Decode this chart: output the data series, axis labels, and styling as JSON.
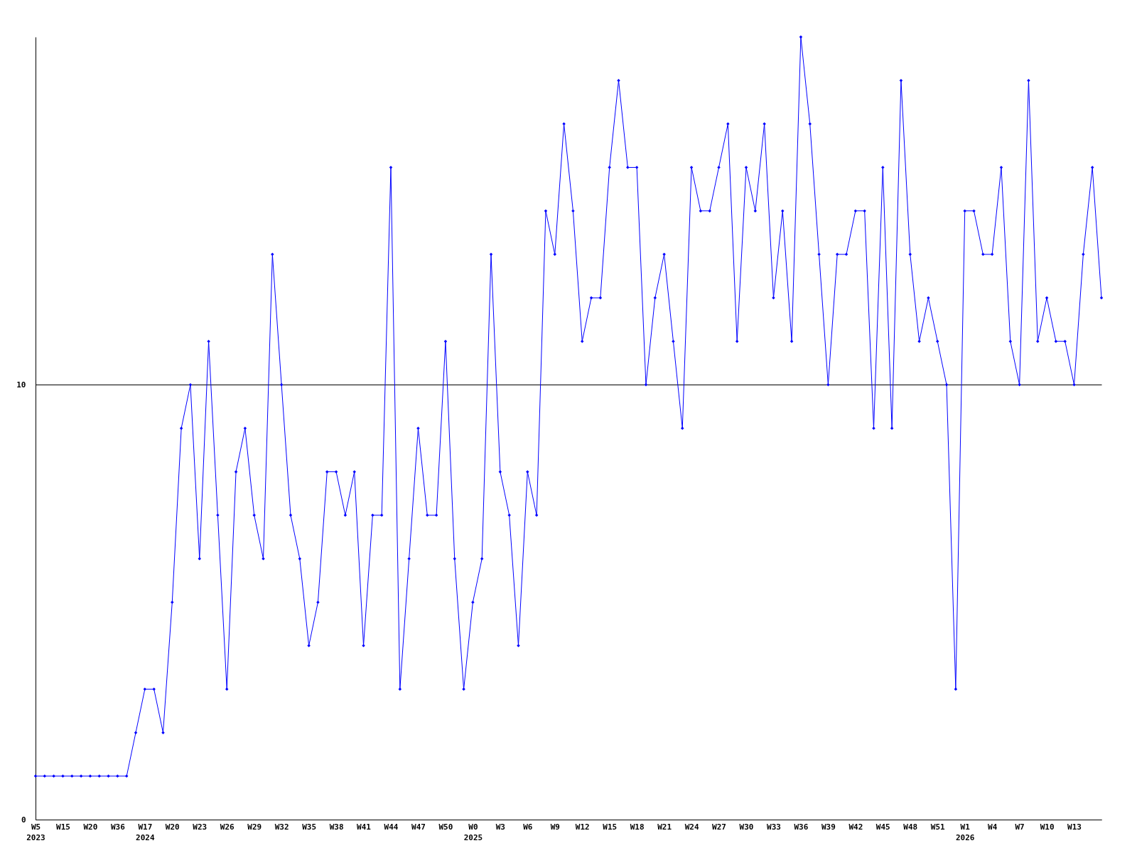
{
  "chart_data": {
    "type": "line",
    "categories": [
      "W5\n2023",
      null,
      null,
      "W15",
      null,
      null,
      "W20",
      null,
      null,
      "W36",
      null,
      null,
      "W17\n2024",
      null,
      null,
      "W20",
      null,
      null,
      "W23",
      null,
      null,
      "W26",
      null,
      null,
      "W29",
      null,
      null,
      "W32",
      null,
      null,
      "W35",
      null,
      null,
      "W38",
      null,
      null,
      "W41",
      null,
      null,
      "W44",
      null,
      null,
      "W47",
      null,
      null,
      "W50",
      null,
      null,
      "W0\n2025",
      null,
      null,
      "W3",
      null,
      null,
      "W6",
      null,
      null,
      "W9",
      null,
      null,
      "W12",
      null,
      null,
      "W15",
      null,
      null,
      "W18",
      null,
      null,
      "W21",
      null,
      null,
      "W24",
      null,
      null,
      "W27",
      null,
      null,
      "W30",
      null,
      null,
      "W33",
      null,
      null,
      "W36",
      null,
      null,
      "W39",
      null,
      null,
      "W42",
      null,
      null,
      "W45",
      null,
      null,
      "W48",
      null,
      null,
      "W51",
      null,
      null,
      "W1\n2026",
      null,
      null,
      "W4",
      null,
      null,
      "W7",
      null,
      null,
      "W10",
      null,
      null,
      "W13",
      null,
      null,
      null
    ],
    "series": [
      {
        "color": "#0000ff",
        "values": [
          1,
          1,
          1,
          1,
          1,
          1,
          1,
          1,
          1,
          1,
          1,
          2,
          3,
          3,
          2,
          5,
          9,
          10,
          6,
          11,
          7,
          3,
          8,
          9,
          7,
          6,
          13,
          10,
          7,
          6,
          4,
          5,
          8,
          8,
          7,
          8,
          4,
          7,
          7,
          15,
          3,
          6,
          9,
          7,
          7,
          11,
          6,
          3,
          5,
          6,
          13,
          8,
          7,
          4,
          8,
          7,
          14,
          13,
          16,
          14,
          11,
          12,
          12,
          15,
          17,
          15,
          15,
          10,
          12,
          13,
          11,
          9,
          15,
          14,
          14,
          15,
          16,
          11,
          15,
          14,
          16,
          12,
          14,
          11,
          18,
          16,
          13,
          10,
          13,
          13,
          14,
          14,
          9,
          15,
          9,
          17,
          13,
          11,
          12,
          11,
          10,
          3,
          14,
          14,
          13,
          13,
          15,
          11,
          10,
          17,
          11,
          12,
          11,
          11,
          10,
          13,
          15,
          12
        ]
      }
    ],
    "ylim": [
      0,
      18
    ],
    "yticks": [
      0,
      10
    ],
    "grid": "y",
    "marker": "diamond",
    "line_style": "solid"
  }
}
